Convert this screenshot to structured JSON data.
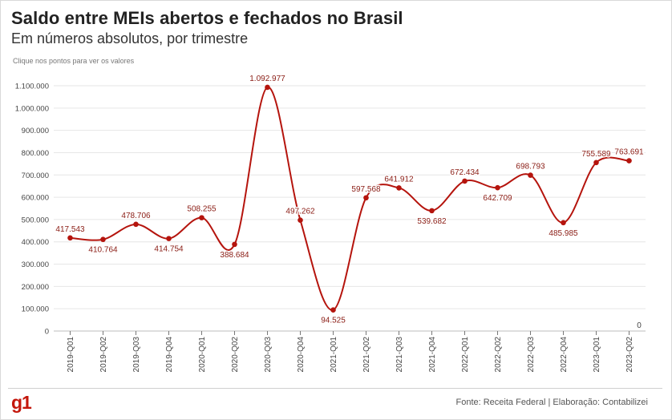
{
  "header": {
    "title": "Saldo entre MEIs abertos e fechados no Brasil",
    "subtitle": "Em números absolutos, por trimestre",
    "hint": "Clique nos pontos para ver os valores"
  },
  "footer": {
    "logo": "g1",
    "source": "Fonte: Receita Federal | Elaboração: Contabilizei"
  },
  "colors": {
    "series": "#b5140d",
    "grid": "#e6e6e6",
    "axis_text": "#444444"
  },
  "chart_data": {
    "type": "line",
    "title": "Saldo entre MEIs abertos e fechados no Brasil",
    "subtitle": "Em números absolutos, por trimestre",
    "xlabel": "",
    "ylabel": "",
    "ylim": [
      0,
      1100000
    ],
    "yticks": [
      0,
      100000,
      200000,
      300000,
      400000,
      500000,
      600000,
      700000,
      800000,
      900000,
      1000000,
      1100000
    ],
    "ytick_labels": [
      "0",
      "100.000",
      "200.000",
      "300.000",
      "400.000",
      "500.000",
      "600.000",
      "700.000",
      "800.000",
      "900.000",
      "1.000.000",
      "1.100.000"
    ],
    "grid": true,
    "legend": "none",
    "categories": [
      "2019-Q01",
      "2019-Q02",
      "2019-Q03",
      "2019-Q04",
      "2020-Q01",
      "2020-Q02",
      "2020-Q03",
      "2020-Q04",
      "2021-Q01",
      "2021-Q02",
      "2021-Q03",
      "2021-Q04",
      "2022-Q01",
      "2022-Q02",
      "2022-Q03",
      "2022-Q04",
      "2023-Q01",
      "2023-Q02"
    ],
    "series": [
      {
        "values": [
          417543,
          410764,
          478706,
          414754,
          508255,
          388684,
          1092977,
          497262,
          94525,
          597568,
          641912,
          539682,
          672434,
          642709,
          698793,
          485985,
          755589,
          763691
        ],
        "labels": [
          "417.543",
          "410.764",
          "478.706",
          "414.754",
          "508.255",
          "388.684",
          "1.092.977",
          "497.262",
          "94.525",
          "597.568",
          "641.912",
          "539.682",
          "672.434",
          "642.709",
          "698.793",
          "485.985",
          "755.589",
          "763.691"
        ]
      }
    ],
    "annotations": [
      {
        "text": "0"
      }
    ]
  }
}
